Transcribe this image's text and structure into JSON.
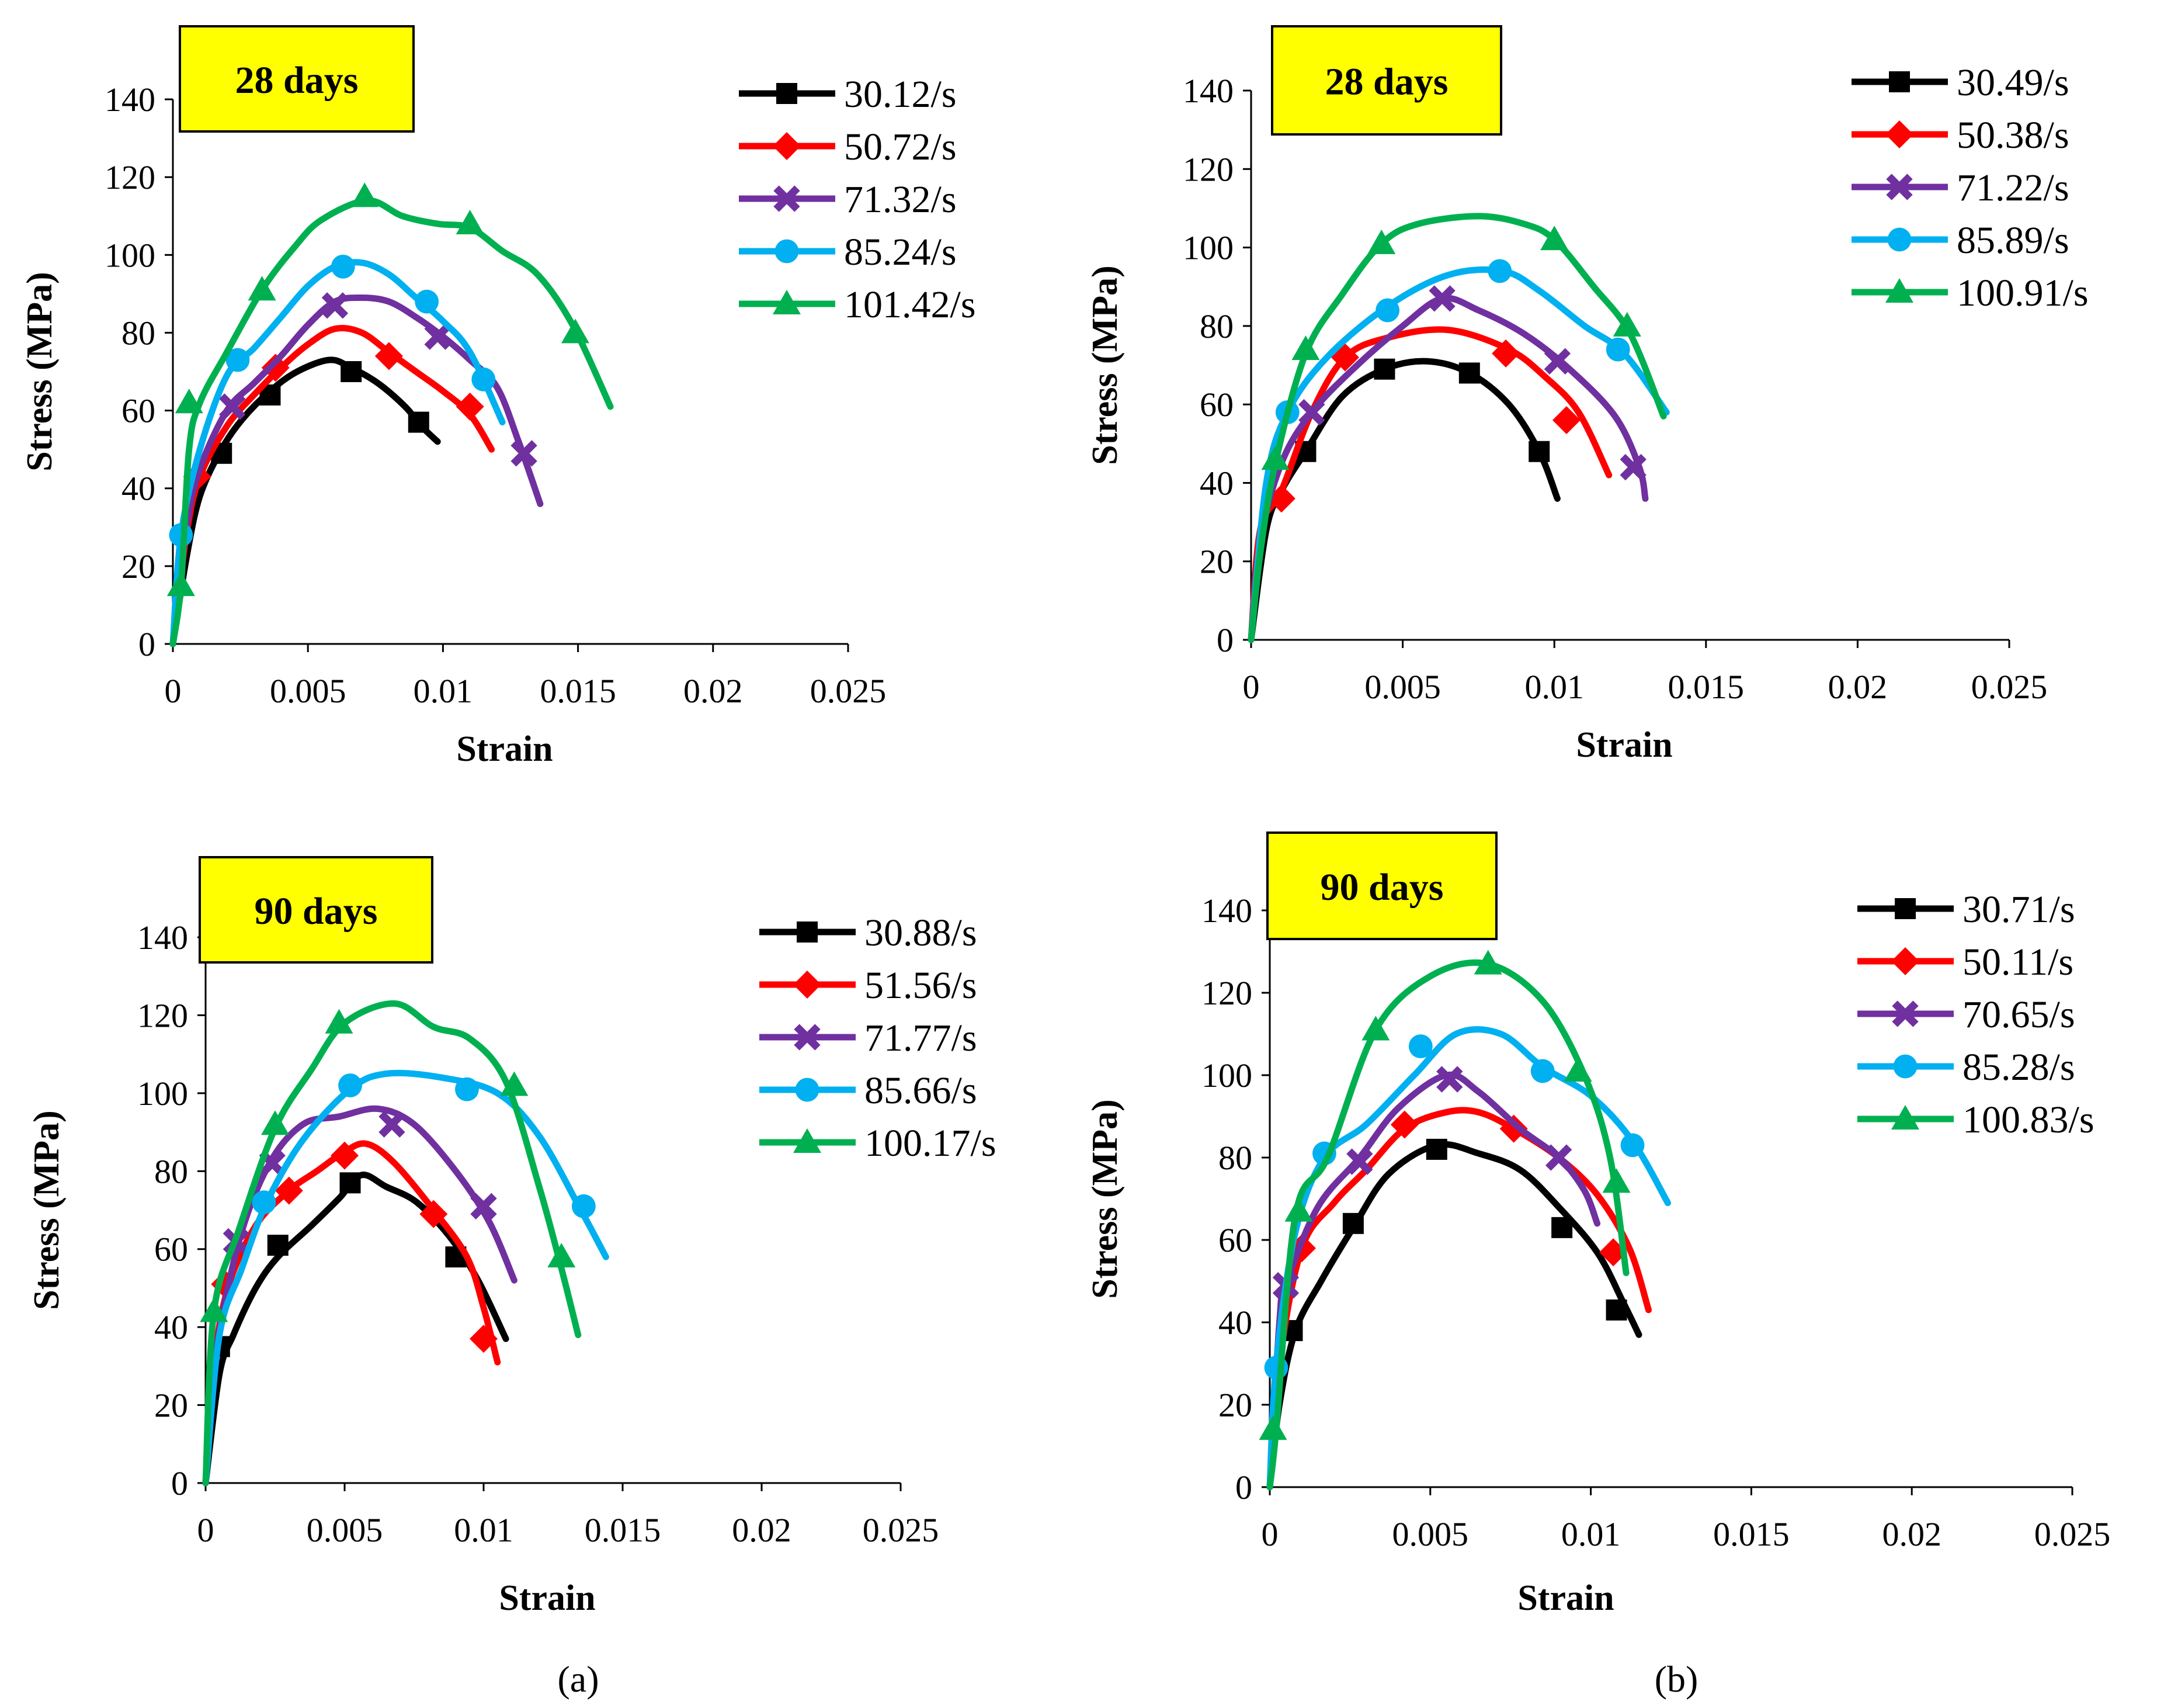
{
  "chart_data": [
    {
      "type": "line",
      "badge": "28 days",
      "xlabel": "Strain",
      "ylabel": "Stress (MPa)",
      "xlim": [
        0,
        0.025
      ],
      "ylim": [
        0,
        140
      ],
      "xticks": [
        "0",
        "0.005",
        "0.01",
        "0.015",
        "0.02",
        "0.025"
      ],
      "yticks": [
        "0",
        "20",
        "40",
        "60",
        "80",
        "100",
        "120",
        "140"
      ],
      "legend_position": "right",
      "series": [
        {
          "name": "30.12/s",
          "color": "#000000",
          "marker": "square",
          "x": [
            0,
            0.0005,
            0.001,
            0.0018,
            0.0026,
            0.0036,
            0.0046,
            0.0058,
            0.0066,
            0.0076,
            0.0086,
            0.0092,
            0.0098
          ],
          "y": [
            0,
            22,
            38,
            50,
            58,
            65,
            70,
            73,
            71,
            67,
            61,
            56,
            52
          ],
          "marker_x": [
            0.0018,
            0.0036,
            0.0066,
            0.0091
          ],
          "marker_y": [
            49,
            64,
            70,
            57
          ]
        },
        {
          "name": "50.72/s",
          "color": "#ff0000",
          "marker": "diamond",
          "x": [
            0,
            0.0005,
            0.001,
            0.002,
            0.003,
            0.004,
            0.005,
            0.006,
            0.007,
            0.008,
            0.009,
            0.01,
            0.011,
            0.0118
          ],
          "y": [
            0,
            28,
            43,
            56,
            64,
            71,
            77,
            81,
            80,
            75,
            70,
            65,
            59,
            50
          ],
          "marker_x": [
            0.0009,
            0.0038,
            0.008,
            0.011
          ],
          "marker_y": [
            43,
            71,
            74,
            61
          ]
        },
        {
          "name": "71.32/s",
          "color": "#7030a0",
          "marker": "x",
          "x": [
            0,
            0.0005,
            0.001,
            0.002,
            0.003,
            0.004,
            0.005,
            0.006,
            0.007,
            0.008,
            0.009,
            0.01,
            0.011,
            0.012,
            0.0128,
            0.0136
          ],
          "y": [
            0,
            30,
            45,
            60,
            67,
            74,
            82,
            88,
            89,
            88,
            84,
            79,
            73,
            66,
            52,
            36
          ],
          "marker_x": [
            0.0022,
            0.006,
            0.0098,
            0.013
          ],
          "marker_y": [
            61,
            87,
            79,
            49
          ]
        },
        {
          "name": "85.24/s",
          "color": "#00b0f0",
          "marker": "circle",
          "x": [
            0,
            0.0003,
            0.001,
            0.002,
            0.003,
            0.004,
            0.005,
            0.006,
            0.007,
            0.008,
            0.009,
            0.01,
            0.011,
            0.0122
          ],
          "y": [
            0,
            28,
            50,
            69,
            76,
            84,
            92,
            97,
            98,
            95,
            89,
            83,
            75,
            57
          ],
          "marker_x": [
            0.0003,
            0.0024,
            0.0063,
            0.0094,
            0.0115
          ],
          "marker_y": [
            28,
            73,
            97,
            88,
            68
          ]
        },
        {
          "name": "101.42/s",
          "color": "#00b050",
          "marker": "triangle",
          "x": [
            0,
            0.0003,
            0.0006,
            0.001,
            0.002,
            0.0033,
            0.0045,
            0.0055,
            0.0072,
            0.0085,
            0.0098,
            0.011,
            0.0122,
            0.0135,
            0.0148,
            0.0162
          ],
          "y": [
            0,
            15,
            50,
            62,
            75,
            91,
            102,
            109,
            114,
            110,
            108,
            107,
            101,
            95,
            82,
            61
          ],
          "marker_x": [
            0.0003,
            0.0006,
            0.0033,
            0.0071,
            0.011,
            0.0149
          ],
          "marker_y": [
            15,
            62,
            91,
            115,
            108,
            80
          ]
        }
      ]
    },
    {
      "type": "line",
      "badge": "28 days",
      "xlabel": "Strain",
      "ylabel": "Stress (MPa)",
      "xlim": [
        0,
        0.025
      ],
      "ylim": [
        0,
        140
      ],
      "xticks": [
        "0",
        "0.005",
        "0.01",
        "0.015",
        "0.02",
        "0.025"
      ],
      "yticks": [
        "0",
        "20",
        "40",
        "60",
        "80",
        "100",
        "120",
        "140"
      ],
      "legend_position": "right",
      "series": [
        {
          "name": "30.49/s",
          "color": "#000000",
          "marker": "square",
          "x": [
            0,
            0.0005,
            0.001,
            0.0018,
            0.003,
            0.0044,
            0.0058,
            0.0072,
            0.0085,
            0.0095,
            0.0101
          ],
          "y": [
            0,
            28,
            38,
            48,
            62,
            69,
            71,
            68,
            60,
            48,
            36
          ],
          "marker_x": [
            0.0018,
            0.0044,
            0.0072,
            0.0095
          ],
          "marker_y": [
            48,
            69,
            68,
            48
          ]
        },
        {
          "name": "50.38/s",
          "color": "#ff0000",
          "marker": "diamond",
          "x": [
            0,
            0.0003,
            0.001,
            0.002,
            0.0031,
            0.0045,
            0.0065,
            0.0085,
            0.0097,
            0.0108,
            0.0118
          ],
          "y": [
            0,
            28,
            38,
            58,
            72,
            77,
            79,
            74,
            67,
            58,
            42
          ],
          "marker_x": [
            0.001,
            0.0031,
            0.0084,
            0.0104
          ],
          "marker_y": [
            36,
            72,
            73,
            56
          ]
        },
        {
          "name": "71.22/s",
          "color": "#7030a0",
          "marker": "x",
          "x": [
            0,
            0.0003,
            0.001,
            0.002,
            0.0035,
            0.005,
            0.0063,
            0.0075,
            0.009,
            0.0105,
            0.012,
            0.0128,
            0.013
          ],
          "y": [
            0,
            25,
            45,
            58,
            70,
            80,
            87,
            84,
            78,
            69,
            57,
            44,
            36
          ],
          "marker_x": [
            0.002,
            0.0063,
            0.0101,
            0.0126
          ],
          "marker_y": [
            58,
            87,
            71,
            44
          ]
        },
        {
          "name": "85.89/s",
          "color": "#00b0f0",
          "marker": "circle",
          "x": [
            0,
            0.0005,
            0.0012,
            0.0025,
            0.0045,
            0.0065,
            0.0083,
            0.0095,
            0.011,
            0.0123,
            0.0137
          ],
          "y": [
            0,
            40,
            58,
            72,
            85,
            93,
            94,
            89,
            80,
            73,
            58
          ],
          "marker_x": [
            0.0012,
            0.0045,
            0.0082,
            0.0121
          ],
          "marker_y": [
            58,
            84,
            94,
            74
          ]
        },
        {
          "name": "100.91/s",
          "color": "#00b050",
          "marker": "triangle",
          "x": [
            0,
            0.0003,
            0.0008,
            0.0018,
            0.003,
            0.0043,
            0.0055,
            0.0075,
            0.009,
            0.01,
            0.0113,
            0.0125,
            0.0136
          ],
          "y": [
            0,
            22,
            45,
            73,
            88,
            101,
            106,
            108,
            106,
            102,
            90,
            78,
            57
          ],
          "marker_x": [
            0.0008,
            0.0018,
            0.0043,
            0.01,
            0.0124
          ],
          "marker_y": [
            46,
            74,
            101,
            102,
            80
          ]
        }
      ]
    },
    {
      "type": "line",
      "badge": "90 days",
      "xlabel": "Strain",
      "ylabel": "Stress (MPa)",
      "xlim": [
        0,
        0.025
      ],
      "ylim": [
        0,
        140
      ],
      "xticks": [
        "0",
        "0.005",
        "0.01",
        "0.015",
        "0.02",
        "0.025"
      ],
      "yticks": [
        "0",
        "20",
        "40",
        "60",
        "80",
        "100",
        "120",
        "140"
      ],
      "legend_position": "right",
      "series": [
        {
          "name": "30.88/s",
          "color": "#000000",
          "marker": "square",
          "x": [
            0,
            0.0005,
            0.001,
            0.0018,
            0.0026,
            0.0038,
            0.0048,
            0.0056,
            0.0065,
            0.0076,
            0.0088,
            0.0098,
            0.0108
          ],
          "y": [
            0,
            28,
            38,
            50,
            58,
            66,
            73,
            79,
            76,
            72,
            63,
            52,
            37
          ],
          "marker_x": [
            0.0005,
            0.0026,
            0.0052,
            0.009
          ],
          "marker_y": [
            35,
            61,
            77,
            58
          ]
        },
        {
          "name": "51.56/s",
          "color": "#ff0000",
          "marker": "diamond",
          "x": [
            0,
            0.0003,
            0.0008,
            0.0018,
            0.003,
            0.004,
            0.005,
            0.0058,
            0.0068,
            0.0082,
            0.0094,
            0.01,
            0.0105
          ],
          "y": [
            0,
            30,
            50,
            66,
            75,
            80,
            85,
            87,
            82,
            70,
            58,
            45,
            31
          ],
          "marker_x": [
            0.0007,
            0.003,
            0.005,
            0.0082,
            0.01
          ],
          "marker_y": [
            51,
            75,
            84,
            69,
            37
          ]
        },
        {
          "name": "71.77/s",
          "color": "#7030a0",
          "marker": "x",
          "x": [
            0,
            0.0003,
            0.0012,
            0.0023,
            0.0035,
            0.0048,
            0.0062,
            0.0075,
            0.009,
            0.0102,
            0.0111
          ],
          "y": [
            0,
            30,
            62,
            82,
            92,
            94,
            96,
            92,
            80,
            67,
            52
          ],
          "marker_x": [
            0.0011,
            0.0024,
            0.0067,
            0.01
          ],
          "marker_y": [
            62,
            82,
            92,
            71
          ]
        },
        {
          "name": "85.66/s",
          "color": "#00b0f0",
          "marker": "circle",
          "x": [
            0,
            0.0005,
            0.0013,
            0.0022,
            0.0035,
            0.0052,
            0.0065,
            0.0085,
            0.0105,
            0.012,
            0.0135,
            0.0144
          ],
          "y": [
            0,
            38,
            55,
            72,
            88,
            101,
            105,
            104,
            100,
            89,
            70,
            58
          ],
          "marker_x": [
            0.0021,
            0.0052,
            0.0094,
            0.0136
          ],
          "marker_y": [
            72,
            102,
            101,
            71
          ]
        },
        {
          "name": "100.17/s",
          "color": "#00b050",
          "marker": "triangle",
          "x": [
            0,
            0.0003,
            0.0012,
            0.0025,
            0.0038,
            0.005,
            0.0068,
            0.0082,
            0.0095,
            0.0108,
            0.012,
            0.0128,
            0.0134
          ],
          "y": [
            0,
            44,
            65,
            91,
            106,
            118,
            123,
            117,
            114,
            103,
            76,
            55,
            38
          ],
          "marker_x": [
            0.0003,
            0.0025,
            0.0048,
            0.0111,
            0.0128
          ],
          "marker_y": [
            44,
            92,
            118,
            102,
            58
          ]
        }
      ]
    },
    {
      "type": "line",
      "badge": "90 days",
      "xlabel": "Strain",
      "ylabel": "Stress (MPa)",
      "xlim": [
        0,
        0.025
      ],
      "ylim": [
        0,
        140
      ],
      "xticks": [
        "0",
        "0.005",
        "0.01",
        "0.015",
        "0.02",
        "0.025"
      ],
      "yticks": [
        "0",
        "20",
        "40",
        "60",
        "80",
        "100",
        "120",
        "140"
      ],
      "legend_position": "right",
      "series": [
        {
          "name": "30.71/s",
          "color": "#000000",
          "marker": "square",
          "x": [
            0,
            0.0003,
            0.0008,
            0.0016,
            0.0026,
            0.0037,
            0.0052,
            0.0065,
            0.0078,
            0.009,
            0.0102,
            0.011,
            0.0115
          ],
          "y": [
            0,
            20,
            38,
            50,
            63,
            76,
            83,
            81,
            77,
            68,
            57,
            45,
            37
          ],
          "marker_x": [
            0.0007,
            0.0026,
            0.0052,
            0.0091,
            0.0108
          ],
          "marker_y": [
            38,
            64,
            82,
            63,
            43
          ]
        },
        {
          "name": "50.11/s",
          "color": "#ff0000",
          "marker": "diamond",
          "x": [
            0,
            0.0003,
            0.001,
            0.002,
            0.003,
            0.0042,
            0.0055,
            0.0065,
            0.0076,
            0.009,
            0.0102,
            0.0112,
            0.0118
          ],
          "y": [
            0,
            30,
            58,
            69,
            77,
            87,
            91,
            91,
            87,
            80,
            71,
            58,
            43
          ],
          "marker_x": [
            0.001,
            0.0042,
            0.0076,
            0.0107
          ],
          "marker_y": [
            58,
            88,
            87,
            57
          ]
        },
        {
          "name": "70.65/s",
          "color": "#7030a0",
          "marker": "x",
          "x": [
            0,
            0.0003,
            0.0005,
            0.0015,
            0.0028,
            0.004,
            0.0055,
            0.0065,
            0.0078,
            0.009,
            0.0098,
            0.0102
          ],
          "y": [
            0,
            40,
            49,
            68,
            80,
            92,
            100,
            96,
            87,
            80,
            72,
            64
          ],
          "marker_x": [
            0.0005,
            0.0028,
            0.0056,
            0.009
          ],
          "marker_y": [
            49,
            79,
            99,
            80
          ]
        },
        {
          "name": "85.28/s",
          "color": "#00b0f0",
          "marker": "circle",
          "x": [
            0,
            0.0002,
            0.0008,
            0.0017,
            0.003,
            0.0045,
            0.0058,
            0.0072,
            0.0085,
            0.01,
            0.0113,
            0.0124
          ],
          "y": [
            0,
            30,
            62,
            80,
            88,
            100,
            110,
            110,
            102,
            95,
            84,
            69
          ],
          "marker_x": [
            0.0002,
            0.0017,
            0.0047,
            0.0085,
            0.0113
          ],
          "marker_y": [
            29,
            81,
            107,
            101,
            83
          ]
        },
        {
          "name": "100.83/s",
          "color": "#00b050",
          "marker": "triangle",
          "x": [
            0,
            0.0002,
            0.0008,
            0.0018,
            0.0033,
            0.005,
            0.0068,
            0.0085,
            0.0098,
            0.0106,
            0.0111
          ],
          "y": [
            0,
            14,
            66,
            80,
            111,
            124,
            127,
            118,
            100,
            80,
            52
          ],
          "marker_x": [
            0.0001,
            0.0009,
            0.0033,
            0.0068,
            0.0096,
            0.0108
          ],
          "marker_y": [
            14,
            67,
            111,
            127,
            101,
            74
          ]
        }
      ]
    }
  ],
  "captions": [
    "(a)",
    "(b)"
  ]
}
